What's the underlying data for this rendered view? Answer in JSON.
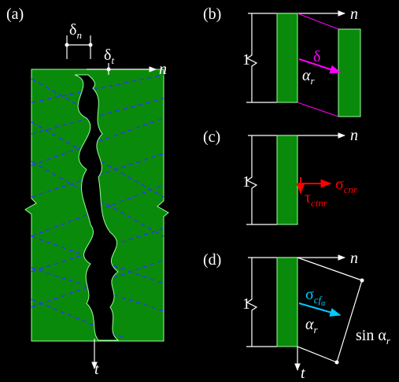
{
  "panel_a": {
    "label": "(a)",
    "delta_n": {
      "base": "δ",
      "sub": "n"
    },
    "delta_t": {
      "base": "δ",
      "sub": "t"
    },
    "n_axis": "n",
    "t_axis": "t"
  },
  "panel_b": {
    "label": "(b)",
    "unit": "1",
    "delta": "δ",
    "alpha": {
      "base": "α",
      "sub": "r"
    },
    "n_axis": "n"
  },
  "panel_c": {
    "label": "(c)",
    "unit": "1",
    "sigma": {
      "base": "σ",
      "sub": "cnr"
    },
    "tau": {
      "base": "τ",
      "sub": "ctnr"
    },
    "n_axis": "n"
  },
  "panel_d": {
    "label": "(d)",
    "unit": "1",
    "sigma": {
      "base": "σ",
      "sub": "cf",
      "subsub": "α"
    },
    "alpha": {
      "base": "α",
      "sub": "r"
    },
    "sin": {
      "base": "sin α",
      "sub": "r"
    },
    "n_axis": "n",
    "t_axis": "t"
  }
}
